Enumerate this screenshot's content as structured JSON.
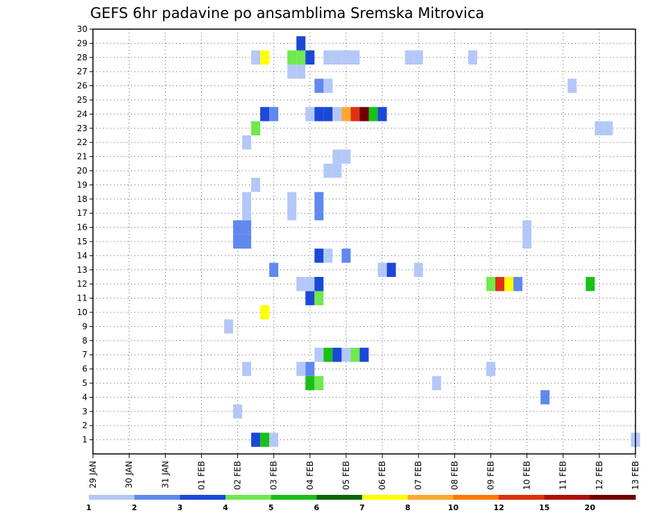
{
  "chart_data": {
    "type": "heatmap",
    "title": "GEFS 6hr padavine po ansamblima Sremska Mitrovica",
    "x_tick_labels": [
      "29 JAN",
      "30 JAN",
      "31 JAN",
      "01 FEB",
      "02 FEB",
      "03 FEB",
      "04 FEB",
      "05 FEB",
      "06 FEB",
      "07 FEB",
      "08 FEB",
      "09 FEB",
      "10 FEB",
      "11 FEB",
      "12 FEB",
      "13 FEB"
    ],
    "y_tick_labels": [
      "1",
      "2",
      "3",
      "4",
      "5",
      "6",
      "7",
      "8",
      "9",
      "10",
      "11",
      "12",
      "13",
      "14",
      "15",
      "16",
      "17",
      "18",
      "19",
      "20",
      "21",
      "22",
      "23",
      "24",
      "25",
      "26",
      "27",
      "28",
      "29",
      "30"
    ],
    "x_range_days": [
      0,
      15
    ],
    "y_range": [
      0,
      30
    ],
    "grid": true,
    "colorbar": {
      "labels": [
        "1",
        "2",
        "3",
        "4",
        "5",
        "6",
        "7",
        "8",
        "10",
        "12",
        "15",
        "20"
      ],
      "colors": [
        "#b4c8f8",
        "#6088ee",
        "#1b48d8",
        "#70e850",
        "#18c018",
        "#086808",
        "#ffff00",
        "#ffa830",
        "#ff7800",
        "#e03010",
        "#b01008",
        "#700000"
      ]
    },
    "cells": [
      {
        "member": 1,
        "t": 4.5,
        "v": 3
      },
      {
        "member": 1,
        "t": 4.75,
        "v": 5
      },
      {
        "member": 1,
        "t": 5.0,
        "v": 1
      },
      {
        "member": 1,
        "t": 15.0,
        "v": 1
      },
      {
        "member": 3,
        "t": 4.0,
        "v": 1
      },
      {
        "member": 4,
        "t": 12.5,
        "v": 2
      },
      {
        "member": 5,
        "t": 6.0,
        "v": 5
      },
      {
        "member": 5,
        "t": 6.25,
        "v": 4
      },
      {
        "member": 5,
        "t": 9.5,
        "v": 1
      },
      {
        "member": 6,
        "t": 4.25,
        "v": 1
      },
      {
        "member": 6,
        "t": 5.75,
        "v": 1
      },
      {
        "member": 6,
        "t": 6.0,
        "v": 2
      },
      {
        "member": 6,
        "t": 11.0,
        "v": 1
      },
      {
        "member": 7,
        "t": 6.25,
        "v": 1
      },
      {
        "member": 7,
        "t": 6.5,
        "v": 5
      },
      {
        "member": 7,
        "t": 6.75,
        "v": 3
      },
      {
        "member": 7,
        "t": 7.0,
        "v": 1
      },
      {
        "member": 7,
        "t": 7.25,
        "v": 4
      },
      {
        "member": 7,
        "t": 7.5,
        "v": 3
      },
      {
        "member": 9,
        "t": 3.75,
        "v": 1
      },
      {
        "member": 10,
        "t": 4.75,
        "v": 7
      },
      {
        "member": 11,
        "t": 6.0,
        "v": 3
      },
      {
        "member": 11,
        "t": 6.25,
        "v": 4
      },
      {
        "member": 12,
        "t": 5.75,
        "v": 1
      },
      {
        "member": 12,
        "t": 6.0,
        "v": 1
      },
      {
        "member": 12,
        "t": 6.25,
        "v": 3
      },
      {
        "member": 12,
        "t": 11.0,
        "v": 4
      },
      {
        "member": 12,
        "t": 11.25,
        "v": 12
      },
      {
        "member": 12,
        "t": 11.5,
        "v": 7
      },
      {
        "member": 12,
        "t": 11.75,
        "v": 2
      },
      {
        "member": 12,
        "t": 13.75,
        "v": 5
      },
      {
        "member": 13,
        "t": 5.0,
        "v": 2
      },
      {
        "member": 13,
        "t": 8.0,
        "v": 1
      },
      {
        "member": 13,
        "t": 8.25,
        "v": 3
      },
      {
        "member": 13,
        "t": 9.0,
        "v": 1
      },
      {
        "member": 14,
        "t": 6.25,
        "v": 3
      },
      {
        "member": 14,
        "t": 6.5,
        "v": 1
      },
      {
        "member": 14,
        "t": 7.0,
        "v": 2
      },
      {
        "member": 15,
        "t": 4.0,
        "v": 2
      },
      {
        "member": 15,
        "t": 4.25,
        "v": 2
      },
      {
        "member": 15,
        "t": 12.0,
        "v": 1
      },
      {
        "member": 16,
        "t": 4.0,
        "v": 2
      },
      {
        "member": 16,
        "t": 4.25,
        "v": 2
      },
      {
        "member": 16,
        "t": 12.0,
        "v": 1
      },
      {
        "member": 17,
        "t": 4.25,
        "v": 1
      },
      {
        "member": 17,
        "t": 5.5,
        "v": 1
      },
      {
        "member": 17,
        "t": 6.25,
        "v": 2
      },
      {
        "member": 18,
        "t": 4.25,
        "v": 1
      },
      {
        "member": 18,
        "t": 5.5,
        "v": 1
      },
      {
        "member": 18,
        "t": 6.25,
        "v": 2
      },
      {
        "member": 19,
        "t": 4.5,
        "v": 1
      },
      {
        "member": 20,
        "t": 6.5,
        "v": 1
      },
      {
        "member": 20,
        "t": 6.75,
        "v": 1
      },
      {
        "member": 21,
        "t": 6.75,
        "v": 1
      },
      {
        "member": 21,
        "t": 7.0,
        "v": 1
      },
      {
        "member": 22,
        "t": 4.25,
        "v": 1
      },
      {
        "member": 23,
        "t": 4.5,
        "v": 4
      },
      {
        "member": 23,
        "t": 14.0,
        "v": 1
      },
      {
        "member": 23,
        "t": 14.25,
        "v": 1
      },
      {
        "member": 24,
        "t": 4.75,
        "v": 3
      },
      {
        "member": 24,
        "t": 5.0,
        "v": 2
      },
      {
        "member": 24,
        "t": 6.0,
        "v": 1
      },
      {
        "member": 24,
        "t": 6.25,
        "v": 3
      },
      {
        "member": 24,
        "t": 6.5,
        "v": 3
      },
      {
        "member": 24,
        "t": 6.75,
        "v": 1
      },
      {
        "member": 24,
        "t": 7.0,
        "v": 8
      },
      {
        "member": 24,
        "t": 7.25,
        "v": 12
      },
      {
        "member": 24,
        "t": 7.5,
        "v": 20
      },
      {
        "member": 24,
        "t": 7.75,
        "v": 5
      },
      {
        "member": 24,
        "t": 8.0,
        "v": 3
      },
      {
        "member": 26,
        "t": 6.25,
        "v": 2
      },
      {
        "member": 26,
        "t": 6.5,
        "v": 1
      },
      {
        "member": 26,
        "t": 13.25,
        "v": 1
      },
      {
        "member": 27,
        "t": 5.5,
        "v": 1
      },
      {
        "member": 27,
        "t": 5.75,
        "v": 1
      },
      {
        "member": 28,
        "t": 4.5,
        "v": 1
      },
      {
        "member": 28,
        "t": 4.75,
        "v": 7
      },
      {
        "member": 28,
        "t": 5.5,
        "v": 4
      },
      {
        "member": 28,
        "t": 5.75,
        "v": 4
      },
      {
        "member": 28,
        "t": 6.0,
        "v": 3
      },
      {
        "member": 28,
        "t": 6.5,
        "v": 1
      },
      {
        "member": 28,
        "t": 6.75,
        "v": 1
      },
      {
        "member": 28,
        "t": 7.0,
        "v": 1
      },
      {
        "member": 28,
        "t": 7.25,
        "v": 1
      },
      {
        "member": 28,
        "t": 8.75,
        "v": 1
      },
      {
        "member": 28,
        "t": 9.0,
        "v": 1
      },
      {
        "member": 28,
        "t": 10.5,
        "v": 1
      },
      {
        "member": 29,
        "t": 5.75,
        "v": 3
      }
    ]
  }
}
